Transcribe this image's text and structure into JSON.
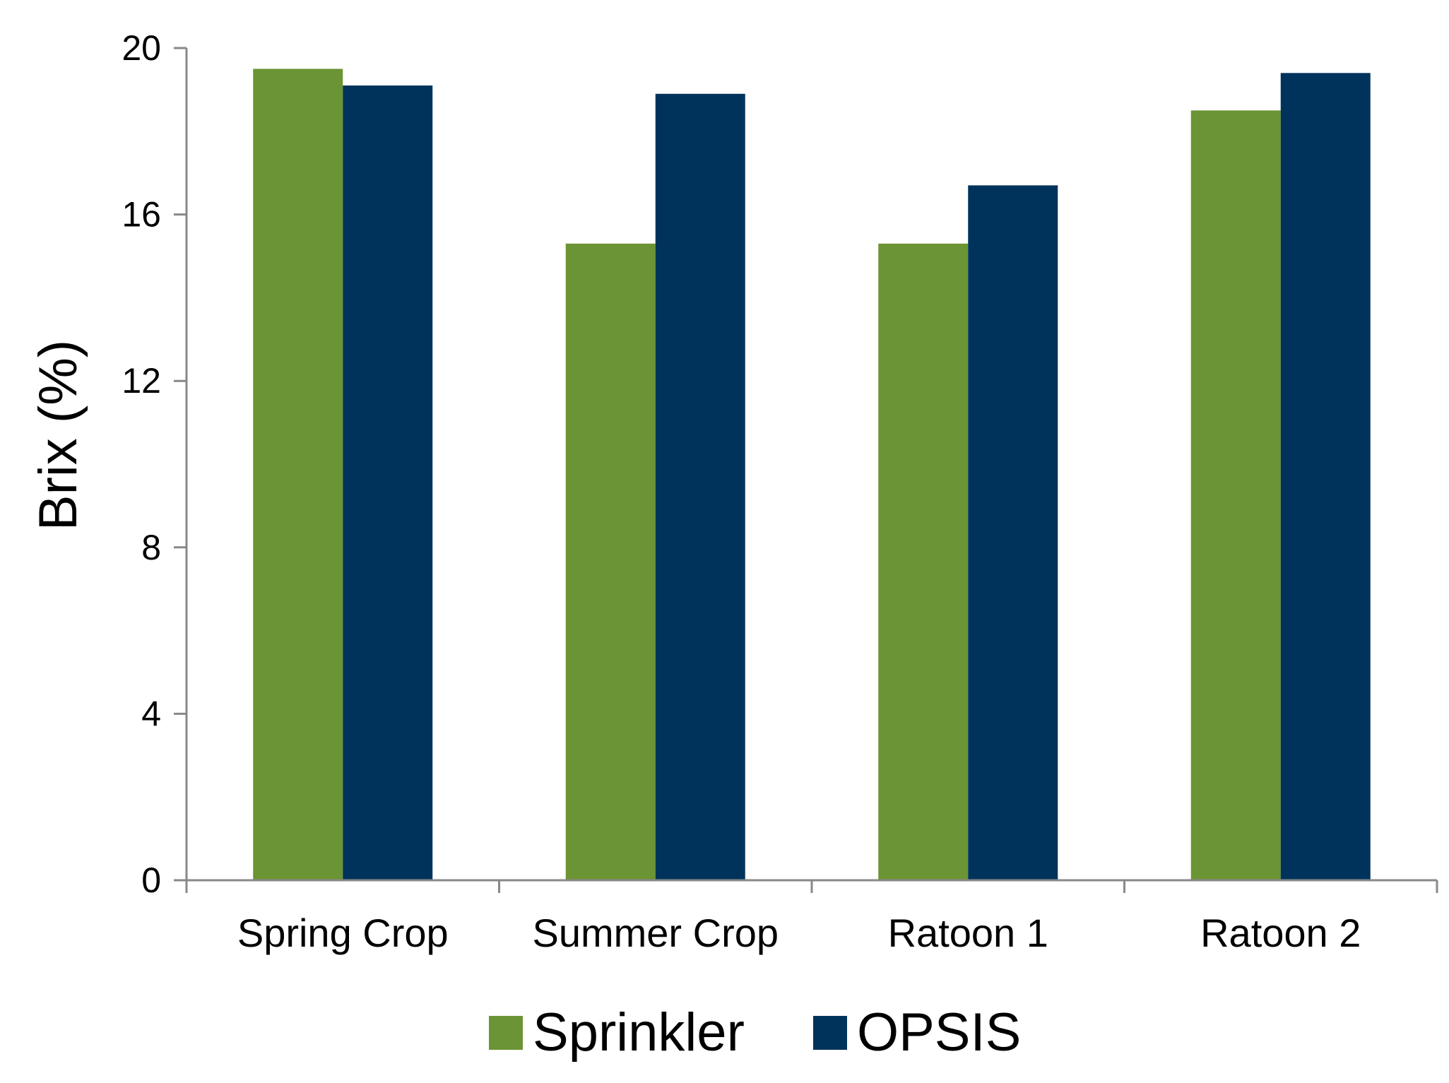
{
  "chart_data": {
    "type": "bar",
    "title": "",
    "xlabel": "",
    "ylabel": "Brix (%)",
    "ylim": [
      0,
      20
    ],
    "yticks": [
      "0",
      "4",
      "8",
      "12",
      "16",
      "20"
    ],
    "categories": [
      "Spring Crop",
      "Summer Crop",
      "Ratoon 1",
      "Ratoon 2"
    ],
    "series": [
      {
        "name": "Sprinkler",
        "color": "#6b9434",
        "values": [
          19.5,
          15.3,
          15.3,
          18.5
        ]
      },
      {
        "name": "OPSIS",
        "color": "#00335c",
        "values": [
          19.1,
          18.9,
          16.7,
          19.4
        ]
      }
    ],
    "grid": false,
    "legend_position": "bottom-center"
  }
}
